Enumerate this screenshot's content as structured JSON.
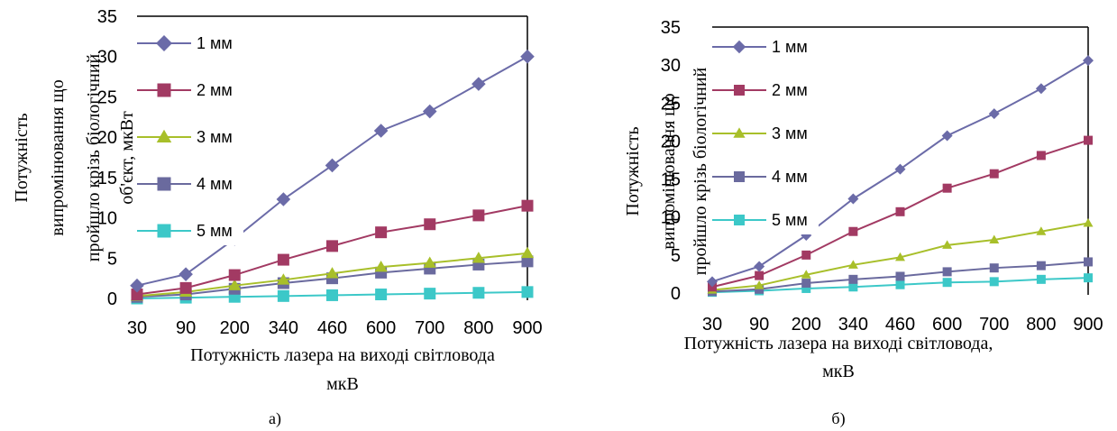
{
  "chart_data": [
    {
      "type": "line",
      "categories": [
        "30",
        "90",
        "200",
        "340",
        "460",
        "600",
        "700",
        "800",
        "900"
      ],
      "series": [
        {
          "name": "1 мм",
          "color": "#6b6ba8",
          "marker": "diamond",
          "values": [
            1.6,
            3.0,
            7.4,
            12.3,
            16.5,
            20.8,
            23.2,
            26.6,
            30.0
          ]
        },
        {
          "name": "2 мм",
          "color": "#a23a63",
          "marker": "square",
          "values": [
            0.5,
            1.3,
            2.9,
            4.8,
            6.5,
            8.2,
            9.2,
            10.3,
            11.5
          ]
        },
        {
          "name": "3 мм",
          "color": "#a8bf2a",
          "marker": "triangle",
          "values": [
            0.3,
            0.8,
            1.6,
            2.3,
            3.1,
            3.9,
            4.4,
            5.0,
            5.6
          ]
        },
        {
          "name": "4 мм",
          "color": "#6a6a9e",
          "marker": "square",
          "values": [
            0.2,
            0.5,
            1.2,
            1.9,
            2.5,
            3.2,
            3.7,
            4.2,
            4.6
          ]
        },
        {
          "name": "5 мм",
          "color": "#3cc8c8",
          "marker": "square",
          "values": [
            0.0,
            0.1,
            0.2,
            0.3,
            0.4,
            0.5,
            0.6,
            0.7,
            0.8
          ]
        }
      ],
      "yticks": [
        "0",
        "5",
        "10",
        "15",
        "20",
        "25",
        "30",
        "35"
      ],
      "ylim": [
        0,
        35
      ],
      "ylabel_lines": [
        "Потужність",
        "випромінювання що",
        "пройшло крізь біологічний",
        "об'єкт, мкВт"
      ],
      "xlabel_lines": [
        "Потужність лазера на виході світловода",
        "мкВ"
      ],
      "caption": "а)",
      "legend_position": "top-left"
    },
    {
      "type": "line",
      "categories": [
        "30",
        "90",
        "200",
        "340",
        "460",
        "600",
        "700",
        "800",
        "900"
      ],
      "series": [
        {
          "name": "1 мм",
          "color": "#6b6ba8",
          "marker": "diamond",
          "values": [
            1.5,
            3.5,
            7.6,
            12.4,
            16.3,
            20.7,
            23.6,
            26.9,
            30.6
          ]
        },
        {
          "name": "2 мм",
          "color": "#a23a63",
          "marker": "square",
          "values": [
            0.8,
            2.3,
            5.0,
            8.1,
            10.7,
            13.8,
            15.7,
            18.1,
            20.1
          ]
        },
        {
          "name": "3 мм",
          "color": "#a8bf2a",
          "marker": "triangle",
          "values": [
            0.4,
            1.0,
            2.4,
            3.7,
            4.7,
            6.3,
            7.0,
            8.1,
            9.2
          ]
        },
        {
          "name": "4 мм",
          "color": "#6a6a9e",
          "marker": "square",
          "values": [
            0.2,
            0.5,
            1.3,
            1.8,
            2.2,
            2.8,
            3.3,
            3.6,
            4.1
          ]
        },
        {
          "name": "5 мм",
          "color": "#3cc8c8",
          "marker": "square",
          "values": [
            0.1,
            0.3,
            0.6,
            0.8,
            1.1,
            1.4,
            1.5,
            1.8,
            2.0
          ]
        }
      ],
      "yticks": [
        "0",
        "5",
        "10",
        "15",
        "20",
        "25",
        "30",
        "35"
      ],
      "ylim": [
        0,
        35
      ],
      "ylabel_lines": [
        "Потужність",
        "випромінювання що",
        "пройшло крізь біологічний"
      ],
      "xlabel_lines": [
        "Потужність лазера на виході світловода,",
        "мкВ"
      ],
      "caption": "б)",
      "legend_position": "top-left"
    }
  ]
}
